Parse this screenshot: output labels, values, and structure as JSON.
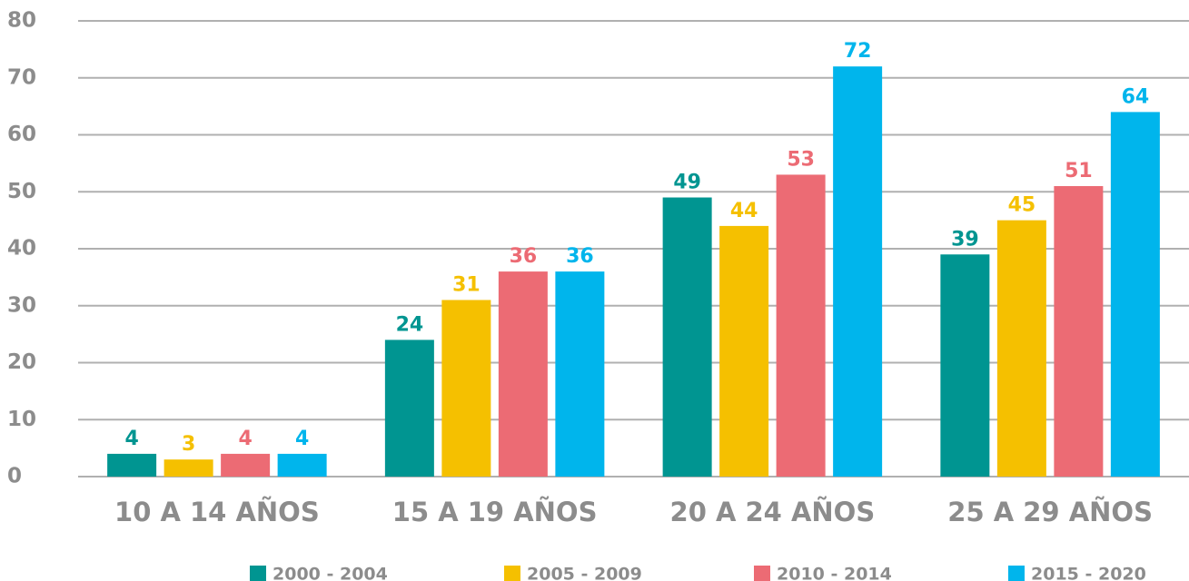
{
  "chart_data": {
    "type": "bar",
    "categories": [
      "10 A 14 AÑOS",
      "15 A 19 AÑOS",
      "20 A 24 AÑOS",
      "25 A 29 AÑOS"
    ],
    "series": [
      {
        "name": "2000 - 2004",
        "color": "#009591",
        "values": [
          4,
          24,
          49,
          39
        ]
      },
      {
        "name": "2005 - 2009",
        "color": "#f5c000",
        "values": [
          3,
          31,
          44,
          45
        ]
      },
      {
        "name": "2010 - 2014",
        "color": "#ec6b74",
        "values": [
          4,
          36,
          53,
          51
        ]
      },
      {
        "name": "2015 - 2020",
        "color": "#00b5ec",
        "values": [
          4,
          36,
          72,
          64
        ]
      }
    ],
    "ylim": [
      0,
      80
    ],
    "yticks": [
      0,
      10,
      20,
      30,
      40,
      50,
      60,
      70,
      80
    ],
    "grid": true,
    "legend": "bottom"
  }
}
